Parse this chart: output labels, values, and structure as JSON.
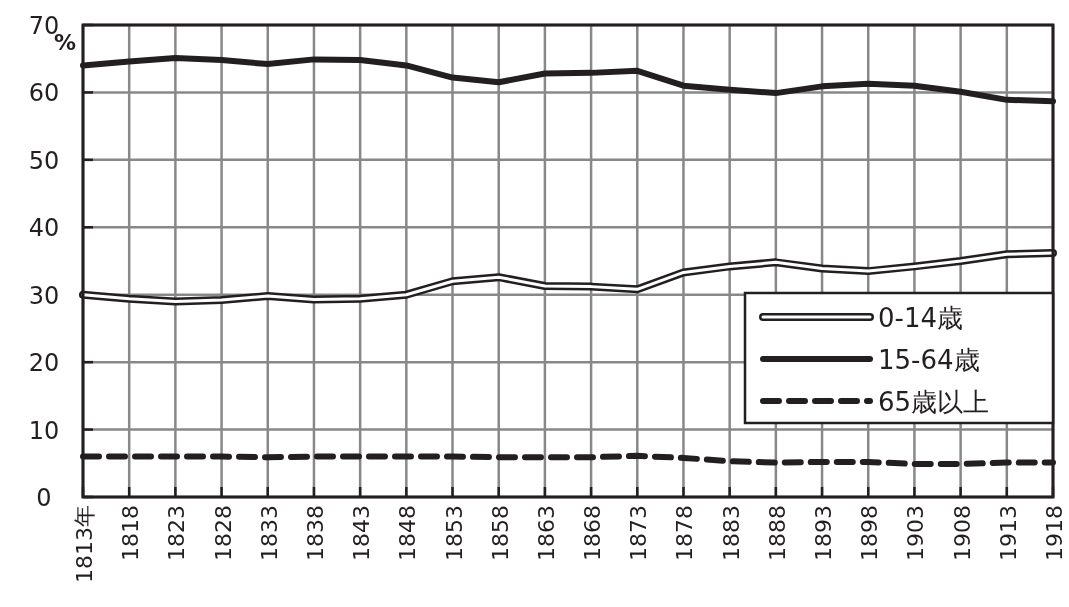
{
  "chart_data": {
    "type": "line",
    "ylabel": "%",
    "categories": [
      "1813年",
      "1818",
      "1823",
      "1828",
      "1833",
      "1838",
      "1843",
      "1848",
      "1853",
      "1858",
      "1863",
      "1868",
      "1873",
      "1878",
      "1883",
      "1888",
      "1893",
      "1898",
      "1903",
      "1908",
      "1913",
      "1918"
    ],
    "series": [
      {
        "name": "0-14歳",
        "color": "#231f20",
        "line_style": "solid",
        "values": [
          30.0,
          29.4,
          29.0,
          29.2,
          29.8,
          29.3,
          29.4,
          30.0,
          32.0,
          32.6,
          31.3,
          31.2,
          30.8,
          33.3,
          34.2,
          34.8,
          33.9,
          33.5,
          34.2,
          35.0,
          36.0,
          36.2
        ]
      },
      {
        "name": "15-64歳",
        "color": "#231f20",
        "line_style": "solid",
        "values": [
          64.0,
          64.6,
          65.1,
          64.8,
          64.2,
          64.9,
          64.8,
          64.0,
          62.2,
          61.5,
          62.8,
          62.9,
          63.2,
          61.0,
          60.4,
          59.9,
          60.9,
          61.3,
          61.0,
          60.1,
          58.9,
          58.7
        ]
      },
      {
        "name": "65歳以上",
        "color": "#231f20",
        "line_style": "dashed",
        "values": [
          6.0,
          6.0,
          6.0,
          6.0,
          5.9,
          6.0,
          6.0,
          6.0,
          6.0,
          5.9,
          5.9,
          5.9,
          6.1,
          5.8,
          5.3,
          5.1,
          5.2,
          5.2,
          4.9,
          4.9,
          5.1,
          5.1
        ]
      }
    ],
    "ylim": [
      0,
      70
    ],
    "yticks": [
      0,
      10,
      20,
      30,
      40,
      50,
      60,
      70
    ],
    "grid": true,
    "legend": "right",
    "marker": "none"
  }
}
